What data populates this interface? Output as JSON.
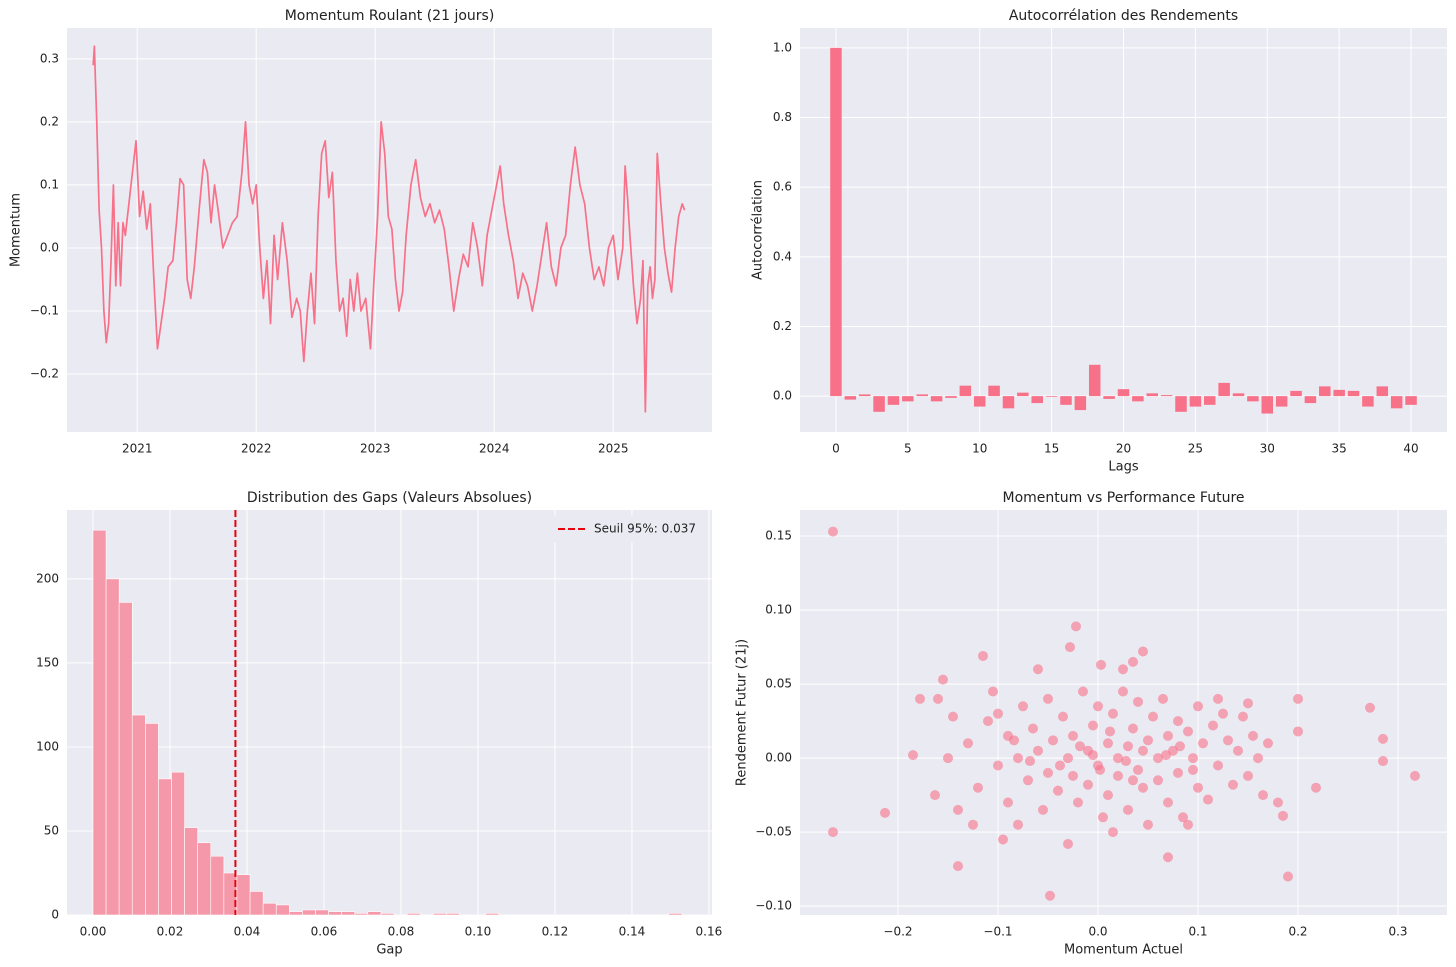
{
  "chart_data": [
    {
      "type": "line",
      "title": "Momentum Roulant (21 jours)",
      "ylabel": "Momentum",
      "color": "#f77189",
      "grid": true,
      "xlim": [
        2020.41,
        2025.83
      ],
      "xticks": [
        2021,
        2022,
        2023,
        2024,
        2025
      ],
      "ylim": [
        -0.292,
        0.349
      ],
      "yticks": [
        {
          "value": -0.2,
          "label": "−0.2"
        },
        {
          "value": -0.1,
          "label": "−0.1"
        },
        {
          "value": 0,
          "label": "0.0"
        },
        0.1,
        0.2,
        0.3
      ],
      "x": [
        2020.63,
        2020.64,
        2020.66,
        2020.68,
        2020.7,
        2020.72,
        2020.74,
        2020.76,
        2020.78,
        2020.8,
        2020.82,
        2020.84,
        2020.86,
        2020.88,
        2020.9,
        2020.93,
        2020.96,
        2020.99,
        2021.02,
        2021.05,
        2021.08,
        2021.11,
        2021.14,
        2021.17,
        2021.2,
        2021.23,
        2021.26,
        2021.3,
        2021.33,
        2021.36,
        2021.39,
        2021.42,
        2021.45,
        2021.48,
        2021.52,
        2021.56,
        2021.59,
        2021.62,
        2021.65,
        2021.68,
        2021.72,
        2021.76,
        2021.8,
        2021.84,
        2021.88,
        2021.91,
        2021.94,
        2021.97,
        2022,
        2022.03,
        2022.06,
        2022.09,
        2022.12,
        2022.15,
        2022.18,
        2022.22,
        2022.26,
        2022.3,
        2022.34,
        2022.37,
        2022.4,
        2022.43,
        2022.46,
        2022.49,
        2022.52,
        2022.55,
        2022.58,
        2022.61,
        2022.64,
        2022.67,
        2022.7,
        2022.73,
        2022.76,
        2022.79,
        2022.82,
        2022.85,
        2022.88,
        2022.92,
        2022.96,
        2022.99,
        2023.02,
        2023.05,
        2023.08,
        2023.11,
        2023.14,
        2023.17,
        2023.2,
        2023.23,
        2023.26,
        2023.3,
        2023.34,
        2023.38,
        2023.42,
        2023.46,
        2023.5,
        2023.54,
        2023.58,
        2023.62,
        2023.66,
        2023.7,
        2023.74,
        2023.78,
        2023.82,
        2023.86,
        2023.9,
        2023.94,
        2023.98,
        2024.02,
        2024.05,
        2024.08,
        2024.12,
        2024.16,
        2024.2,
        2024.24,
        2024.28,
        2024.32,
        2024.36,
        2024.4,
        2024.44,
        2024.48,
        2024.52,
        2024.56,
        2024.6,
        2024.64,
        2024.68,
        2024.72,
        2024.76,
        2024.8,
        2024.84,
        2024.88,
        2024.92,
        2024.96,
        2025,
        2025.04,
        2025.08,
        2025.1,
        2025.12,
        2025.14,
        2025.17,
        2025.2,
        2025.23,
        2025.25,
        2025.27,
        2025.29,
        2025.31,
        2025.33,
        2025.35,
        2025.37,
        2025.4,
        2025.43,
        2025.46,
        2025.49,
        2025.52,
        2025.55,
        2025.58,
        2025.6
      ],
      "values": [
        0.29,
        0.32,
        0.2,
        0.06,
        0,
        -0.1,
        -0.15,
        -0.12,
        -0.02,
        0.1,
        -0.06,
        0.04,
        -0.06,
        0.04,
        0.02,
        0.07,
        0.12,
        0.17,
        0.05,
        0.09,
        0.03,
        0.07,
        -0.05,
        -0.16,
        -0.12,
        -0.08,
        -0.03,
        -0.02,
        0.04,
        0.11,
        0.1,
        -0.05,
        -0.08,
        -0.03,
        0.06,
        0.14,
        0.12,
        0.04,
        0.1,
        0.06,
        0,
        0.02,
        0.04,
        0.05,
        0.12,
        0.2,
        0.1,
        0.07,
        0.1,
        0,
        -0.08,
        -0.02,
        -0.12,
        0.02,
        -0.05,
        0.04,
        -0.02,
        -0.11,
        -0.08,
        -0.1,
        -0.18,
        -0.1,
        -0.04,
        -0.12,
        0.05,
        0.15,
        0.17,
        0.08,
        0.12,
        -0.02,
        -0.1,
        -0.08,
        -0.14,
        -0.05,
        -0.1,
        -0.04,
        -0.1,
        -0.08,
        -0.16,
        -0.05,
        0.05,
        0.2,
        0.15,
        0.05,
        0.03,
        -0.05,
        -0.1,
        -0.07,
        0.02,
        0.1,
        0.14,
        0.08,
        0.05,
        0.07,
        0.04,
        0.06,
        0.03,
        -0.03,
        -0.1,
        -0.05,
        -0.01,
        -0.03,
        0.04,
        0,
        -0.06,
        0.02,
        0.06,
        0.1,
        0.13,
        0.07,
        0.02,
        -0.02,
        -0.08,
        -0.04,
        -0.06,
        -0.1,
        -0.06,
        -0.01,
        0.04,
        -0.03,
        -0.06,
        0,
        0.02,
        0.1,
        0.16,
        0.1,
        0.07,
        0,
        -0.05,
        -0.03,
        -0.06,
        0,
        0.02,
        -0.05,
        0,
        0.13,
        0.08,
        0.02,
        -0.06,
        -0.12,
        -0.08,
        -0.02,
        -0.26,
        -0.06,
        -0.03,
        -0.08,
        -0.05,
        0.15,
        0.07,
        0,
        -0.04,
        -0.07,
        0,
        0.05,
        0.07,
        0.06
      ]
    },
    {
      "type": "bar",
      "title": "Autocorrélation des Rendements",
      "xlabel": "Lags",
      "ylabel": "Autocorrélation",
      "color": "#f77189",
      "grid": true,
      "xlim": [
        -2.5,
        42.5
      ],
      "xticks": [
        0,
        5,
        10,
        15,
        20,
        25,
        30,
        35,
        40
      ],
      "ylim": [
        -0.103,
        1.057
      ],
      "yticks": [
        {
          "value": 0,
          "label": "0.0"
        },
        0.2,
        0.4,
        0.6,
        0.8,
        {
          "value": 1,
          "label": "1.0"
        }
      ],
      "x": [
        0,
        1,
        2,
        3,
        4,
        5,
        6,
        7,
        8,
        9,
        10,
        11,
        12,
        13,
        14,
        15,
        16,
        17,
        18,
        19,
        20,
        21,
        22,
        23,
        24,
        25,
        26,
        27,
        28,
        29,
        30,
        31,
        32,
        33,
        34,
        35,
        36,
        37,
        38,
        39,
        40
      ],
      "values": [
        1,
        -0.01,
        0.005,
        -0.045,
        -0.025,
        -0.015,
        0.005,
        -0.015,
        -0.005,
        0.03,
        -0.03,
        0.03,
        -0.035,
        0.01,
        -0.02,
        -0.002,
        -0.025,
        -0.04,
        0.09,
        -0.008,
        0.02,
        -0.015,
        0.008,
        0.003,
        -0.045,
        -0.03,
        -0.025,
        0.038,
        0.008,
        -0.015,
        -0.05,
        -0.03,
        0.015,
        -0.02,
        0.028,
        0.018,
        0.015,
        -0.03,
        0.028,
        -0.035,
        -0.025
      ]
    },
    {
      "type": "histogram",
      "title": "Distribution des Gaps (Valeurs Absolues)",
      "xlabel": "Gap",
      "color": "#f598a9",
      "grid": true,
      "xlim": [
        -0.00675,
        0.1608
      ],
      "xticks": [
        {
          "value": 0,
          "label": "0.00"
        },
        0.02,
        0.04,
        0.06,
        0.08,
        {
          "value": 0.1,
          "label": "0.10"
        },
        0.12,
        0.14,
        0.16
      ],
      "ylim": [
        0,
        241
      ],
      "yticks": [
        0,
        50,
        100,
        150,
        200
      ],
      "bins": [
        0,
        0.0034,
        0.0068,
        0.0102,
        0.0136,
        0.017,
        0.0204,
        0.0238,
        0.0272,
        0.0306,
        0.034,
        0.0374,
        0.0408,
        0.0442,
        0.0476,
        0.051,
        0.0544,
        0.0578,
        0.0612,
        0.0646,
        0.068,
        0.0714,
        0.0748,
        0.0782,
        0.0816,
        0.085,
        0.0884,
        0.0918,
        0.0952,
        0.0986,
        0.102,
        0.1054,
        0.1088,
        0.1122,
        0.1156,
        0.119,
        0.1224,
        0.1258,
        0.1292,
        0.1326,
        0.136,
        0.1394,
        0.1428,
        0.1462,
        0.1496,
        0.153
      ],
      "values": [
        229,
        200,
        186,
        119,
        114,
        81,
        85,
        52,
        43,
        35,
        25,
        24,
        14,
        7,
        6,
        2,
        3,
        3,
        2,
        2,
        1,
        2,
        1,
        0,
        1,
        0,
        1,
        1,
        0,
        0,
        1,
        0,
        0,
        0,
        0,
        0,
        0,
        0,
        0,
        0,
        0,
        0,
        0,
        0,
        1
      ],
      "vline": {
        "value": 0.037,
        "label": "Seuil 95%: 0.037",
        "color": "#e8000b"
      },
      "legend": "upper right"
    },
    {
      "type": "scatter",
      "title": "Momentum vs Performance Future",
      "xlabel": "Momentum Actuel",
      "ylabel": "Rendement Futur (21j)",
      "color": "#f77189",
      "grid": true,
      "xlim": [
        -0.298,
        0.349
      ],
      "xticks": [
        {
          "value": -0.2,
          "label": "−0.2"
        },
        {
          "value": -0.1,
          "label": "−0.1"
        },
        {
          "value": 0,
          "label": "0.0"
        },
        0.1,
        0.2,
        0.3
      ],
      "ylim": [
        -0.106,
        0.1676
      ],
      "yticks": [
        {
          "value": -0.1,
          "label": "−0.10"
        },
        {
          "value": -0.05,
          "label": "−0.05"
        },
        {
          "value": 0,
          "label": "0.00"
        },
        0.05,
        {
          "value": 0.1,
          "label": "0.10"
        },
        0.15
      ],
      "x": [
        -0.13,
        -0.12,
        -0.11,
        -0.1,
        -0.1,
        -0.09,
        -0.09,
        -0.08,
        -0.08,
        -0.075,
        -0.07,
        -0.065,
        -0.06,
        -0.055,
        -0.05,
        -0.05,
        -0.045,
        -0.04,
        -0.035,
        -0.03,
        -0.03,
        -0.025,
        -0.02,
        -0.015,
        -0.01,
        -0.01,
        -0.005,
        0,
        0,
        0.005,
        0.01,
        0.01,
        0.015,
        0.02,
        0.02,
        0.025,
        0.03,
        0.03,
        0.035,
        0.04,
        0.04,
        0.045,
        0.05,
        0.05,
        0.055,
        0.06,
        0.06,
        0.065,
        0.07,
        0.07,
        0.075,
        0.08,
        0.08,
        0.085,
        0.09,
        0.095,
        0.1,
        0.1,
        0.105,
        0.11,
        0.115,
        0.12,
        0.125,
        0.13,
        0.135,
        0.14,
        0.145,
        0.15,
        0.155,
        0.16,
        0.165,
        0.17,
        -0.14,
        -0.15,
        -0.145,
        -0.125,
        -0.105,
        -0.095,
        0.015,
        0.09,
        -0.06,
        0.12,
        -0.005,
        0.002,
        0.012,
        -0.018,
        0.028,
        0.045,
        -0.038,
        0.068,
        -0.068,
        0.082,
        -0.084,
        0.095,
        0.035,
        -0.025,
        -0.265,
        -0.265,
        -0.213,
        -0.14,
        -0.048,
        -0.022,
        -0.028,
        0.045,
        0.035,
        0.003,
        0.025,
        -0.115,
        0.07,
        0.19,
        0.272,
        0.285,
        0.285,
        0.317,
        0.2,
        0.218,
        0.2,
        0.185,
        -0.155,
        -0.185,
        -0.16,
        -0.178,
        -0.163,
        0.18,
        0.15
      ],
      "values": [
        0.01,
        -0.02,
        0.025,
        -0.005,
        0.03,
        -0.03,
        0.015,
        0,
        -0.045,
        0.035,
        -0.015,
        0.02,
        0.005,
        -0.035,
        0.04,
        -0.01,
        0.012,
        -0.022,
        0.028,
        0,
        -0.058,
        0.015,
        -0.03,
        0.045,
        0.005,
        -0.018,
        0.022,
        -0.005,
        0.035,
        -0.04,
        0.01,
        -0.025,
        0.03,
        0,
        -0.012,
        0.045,
        0.008,
        -0.035,
        0.02,
        -0.008,
        0.038,
        -0.02,
        0.012,
        -0.045,
        0.028,
        0,
        -0.015,
        0.04,
        0.015,
        -0.03,
        0.005,
        0.025,
        -0.01,
        -0.04,
        0.018,
        0,
        -0.02,
        0.035,
        0.01,
        -0.028,
        0.022,
        -0.005,
        0.03,
        0.012,
        -0.018,
        0.005,
        0.028,
        -0.012,
        0.015,
        0,
        -0.025,
        0.01,
        -0.035,
        0,
        0.028,
        -0.045,
        0.045,
        -0.055,
        -0.05,
        -0.045,
        0.06,
        0.04,
        0.002,
        -0.008,
        0.018,
        0.008,
        -0.002,
        0.005,
        -0.005,
        0.002,
        -0.002,
        0.008,
        0.012,
        -0.008,
        -0.015,
        -0.012,
        0.153,
        -0.05,
        -0.037,
        -0.073,
        -0.093,
        0.089,
        0.075,
        0.072,
        0.065,
        0.063,
        0.06,
        0.069,
        -0.067,
        -0.08,
        0.034,
        0.013,
        -0.002,
        -0.012,
        0.04,
        -0.02,
        0.018,
        -0.039,
        0.053,
        0.002,
        0.04,
        0.04,
        -0.025,
        -0.03,
        0.037
      ]
    }
  ]
}
